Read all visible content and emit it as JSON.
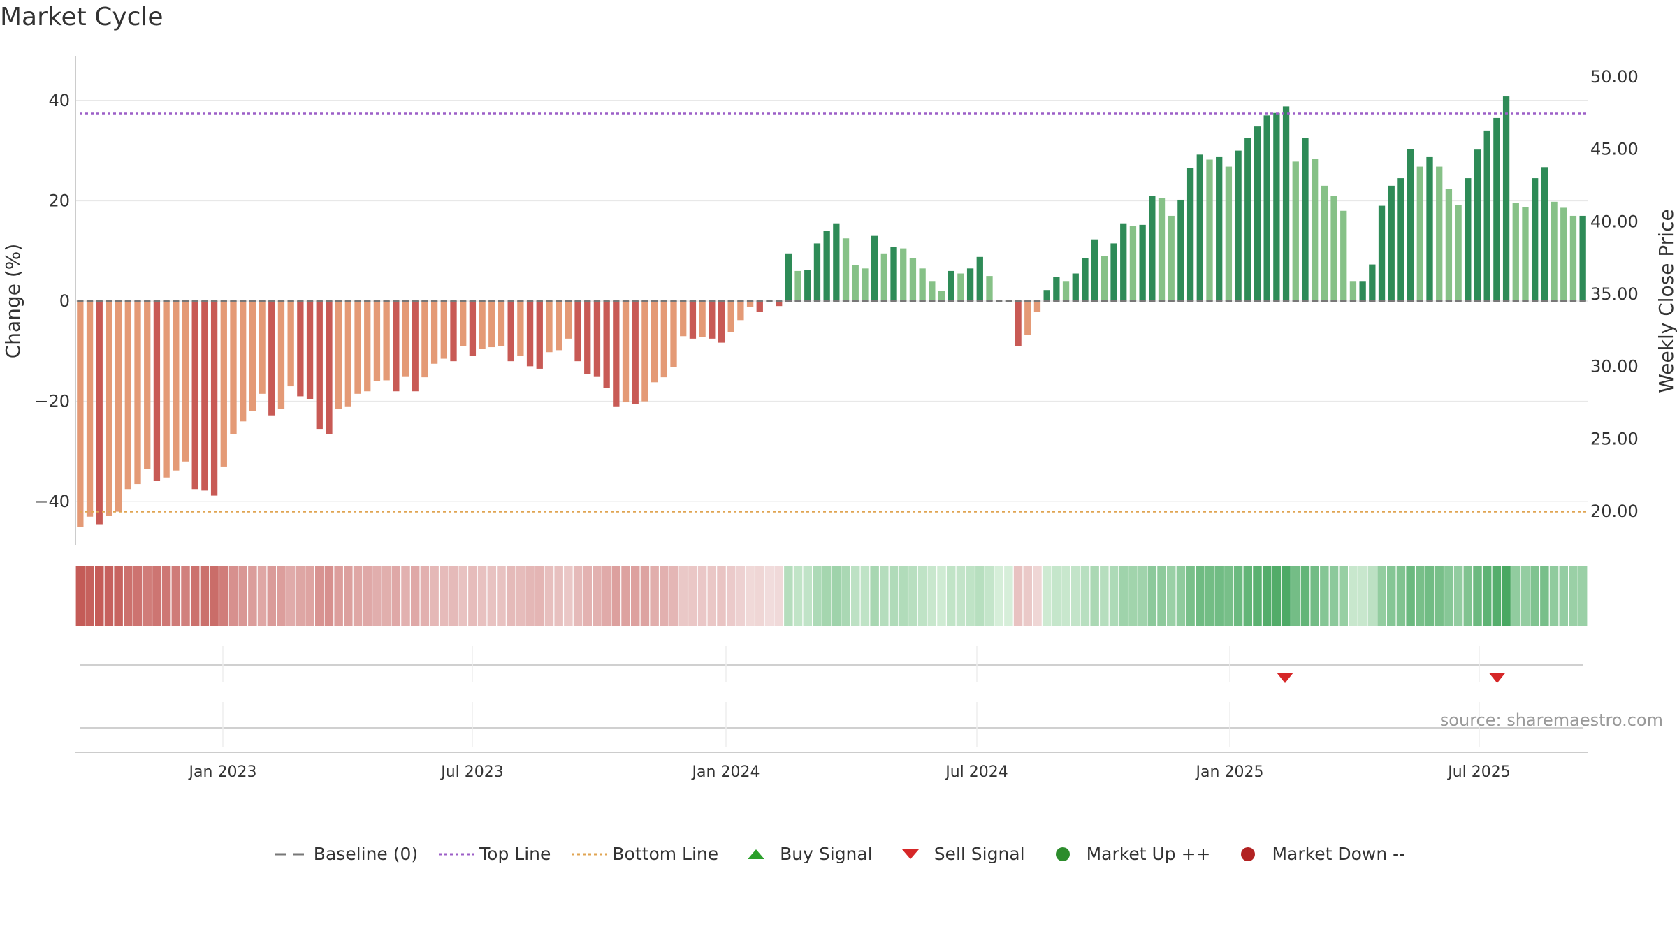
{
  "page": {
    "title": "Market Cycle",
    "source": "source: sharemaestro.com"
  },
  "colors": {
    "down_dark": "#c85a55",
    "down_light": "#e49a76",
    "up_dark": "#2e8b57",
    "up_light": "#86c187",
    "top_line": "#9c5fc7",
    "bottom_line": "#e0a553",
    "baseline": "#777777",
    "grid": "#e8e8e8",
    "sell_signal": "#d62728",
    "buy_signal": "#2ca02c",
    "market_up": "#2c8c2c",
    "market_down": "#b22222"
  },
  "legend": [
    {
      "key": "baseline",
      "label": "Baseline (0)",
      "symbol": "dash-line"
    },
    {
      "key": "top",
      "label": "Top Line",
      "symbol": "dot-line-purple"
    },
    {
      "key": "bottom",
      "label": "Bottom Line",
      "symbol": "dot-line-orange"
    },
    {
      "key": "buy",
      "label": "Buy Signal",
      "symbol": "triangle-up"
    },
    {
      "key": "sell",
      "label": "Sell Signal",
      "symbol": "triangle-down"
    },
    {
      "key": "up",
      "label": "Market Up ++",
      "symbol": "circle-green"
    },
    {
      "key": "down",
      "label": "Market Down --",
      "symbol": "circle-red"
    }
  ],
  "chart_data": {
    "type": "bar",
    "title": "Market Cycle",
    "y_left_label": "Change (%)",
    "y_right_label": "Weekly Close Price",
    "y_left_ticks": [
      "40",
      "20",
      "0",
      "−20",
      "−40"
    ],
    "y_left_tick_values": [
      40,
      20,
      0,
      -20,
      -40
    ],
    "y_right_ticks": [
      "50.00",
      "45.00",
      "40.00",
      "35.00",
      "30.00",
      "25.00",
      "20.00"
    ],
    "y_right_tick_values": [
      50,
      45,
      40,
      35,
      30,
      25,
      20
    ],
    "ylim_left": [
      -49,
      49
    ],
    "x_ticks": [
      "Jan 2023",
      "Jul 2023",
      "Jan 2024",
      "Jul 2024",
      "Jan 2025",
      "Jul 2025"
    ],
    "top_line": 37.4,
    "bottom_line": -42.0,
    "grid": true,
    "legend_placement": "bottom-center",
    "sell_signals": [
      "2025-02-10",
      "2025-07-14"
    ],
    "buy_signals": [],
    "series": [
      {
        "name": "Change (%)",
        "values": [
          -45,
          -43,
          -44.5,
          -42.8,
          -42,
          -37.5,
          -36.5,
          -33.5,
          -35.8,
          -35.2,
          -33.8,
          -32,
          -37.5,
          -37.8,
          -38.8,
          -33,
          -26.5,
          -24,
          -22,
          -18.5,
          -22.8,
          -21.5,
          -17,
          -19,
          -19.5,
          -25.5,
          -26.5,
          -21.5,
          -21,
          -18.5,
          -18,
          -16,
          -15.8,
          -18,
          -15,
          -18,
          -15.2,
          -12.5,
          -11.5,
          -12,
          -9,
          -11,
          -9.5,
          -9.2,
          -9,
          -12,
          -11,
          -13,
          -13.5,
          -10.2,
          -9.8,
          -7.5,
          -12,
          -14.5,
          -15,
          -17.3,
          -21,
          -20.2,
          -20.5,
          -20,
          -16.2,
          -15.2,
          -13.2,
          -7,
          -7.5,
          -7.2,
          -7.5,
          -8.3,
          -6.2,
          -3.8,
          -1.2,
          -2.2,
          0,
          -1,
          9.5,
          6,
          6.2,
          11.5,
          14,
          15.5,
          12.5,
          7.2,
          6.5,
          13,
          9.5,
          10.8,
          10.5,
          8.5,
          6.5,
          4,
          2,
          6,
          5.5,
          6.5,
          8.8,
          5,
          0,
          0,
          -9,
          -6.8,
          -2.2,
          2.2,
          4.8,
          4,
          5.5,
          8.5,
          12.3,
          9,
          11.5,
          15.5,
          15,
          15.2,
          21,
          20.5,
          17,
          20.2,
          26.5,
          29.2,
          28.2,
          28.7,
          26.8,
          30,
          32.5,
          34.8,
          37,
          37.5,
          38.8,
          27.8,
          32.5,
          28.3,
          23,
          21,
          18,
          4,
          4,
          7.3,
          19,
          23,
          24.5,
          30.3,
          26.8,
          28.7,
          26.8,
          22.3,
          19.2,
          24.5,
          30.2,
          34,
          36.5,
          40.8,
          19.5,
          18.8,
          24.5,
          26.7,
          19.8,
          18.6,
          17,
          17
        ]
      }
    ]
  }
}
